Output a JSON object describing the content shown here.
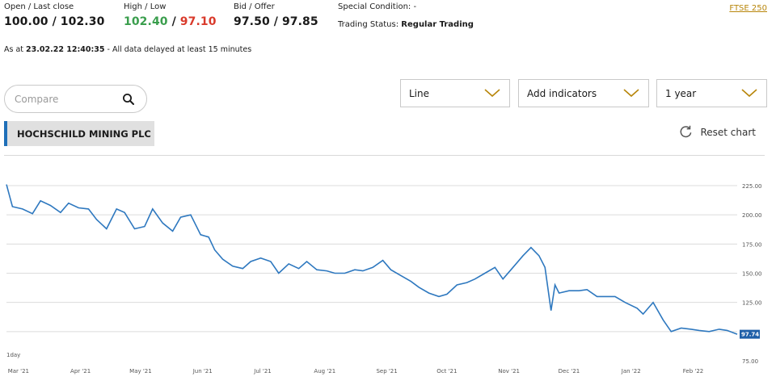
{
  "quote": {
    "open_last_close_label": "Open / Last close",
    "open_last_close_value": "100.00 / 102.30",
    "high_low_label": "High / Low",
    "high_value": "102.40",
    "separator": " / ",
    "low_value": "97.10",
    "bid_offer_label": "Bid / Offer",
    "bid_offer_value": "97.50 / 97.85",
    "special_condition_label": "Special Condition:",
    "special_condition_value": "-",
    "trading_status_label": "Trading Status:",
    "trading_status_value": "Regular Trading",
    "index_link": "FTSE 250"
  },
  "as_at": {
    "prefix": "As at ",
    "timestamp": "23.02.22 12:40:35",
    "suffix": " - All data delayed at least 15 minutes"
  },
  "controls": {
    "compare_placeholder": "Compare",
    "chart_type": "Line",
    "indicators": "Add indicators",
    "period": "1 year",
    "reset_label": "Reset chart"
  },
  "company_name": "HOCHSCHILD MINING PLC",
  "colors": {
    "line": "#2e78bf",
    "high": "#3a9e4d",
    "low": "#d93a2b",
    "accent": "#1f6fb8",
    "link": "#b8860b"
  },
  "icons": {
    "search": "search-icon",
    "chevron": "chevron-down-icon",
    "reset": "reset-icon"
  },
  "chart_data": {
    "type": "line",
    "range_label": "1day",
    "last_value_label": "97.74",
    "ylim": [
      75,
      225
    ],
    "y_ticks": [
      75,
      100,
      125,
      150,
      175,
      200,
      225
    ],
    "y_tick_labels": [
      "75.00",
      "",
      "125.00",
      "150.00",
      "175.00",
      "200.00",
      "225.00"
    ],
    "x_tick_labels": [
      "Mar '21",
      "Apr '21",
      "May '21",
      "Jun '21",
      "Jul '21",
      "Aug '21",
      "Sep '21",
      "Oct '21",
      "Nov '21",
      "Dec '21",
      "Jan '22",
      "Feb '22"
    ],
    "x_tick_dates": [
      "2021-03-01",
      "2021-04-01",
      "2021-05-01",
      "2021-06-01",
      "2021-07-01",
      "2021-08-01",
      "2021-09-01",
      "2021-10-01",
      "2021-11-01",
      "2021-12-01",
      "2022-01-01",
      "2022-02-01"
    ],
    "grid": true,
    "series": [
      {
        "dates": [
          "2021-02-23",
          "2021-02-26",
          "2021-03-03",
          "2021-03-08",
          "2021-03-12",
          "2021-03-17",
          "2021-03-22",
          "2021-03-26",
          "2021-03-31",
          "2021-04-05",
          "2021-04-09",
          "2021-04-14",
          "2021-04-19",
          "2021-04-23",
          "2021-04-28",
          "2021-05-03",
          "2021-05-07",
          "2021-05-12",
          "2021-05-17",
          "2021-05-21",
          "2021-05-26",
          "2021-05-31",
          "2021-06-04",
          "2021-06-07",
          "2021-06-11",
          "2021-06-16",
          "2021-06-21",
          "2021-06-25",
          "2021-06-30",
          "2021-07-05",
          "2021-07-09",
          "2021-07-14",
          "2021-07-19",
          "2021-07-23",
          "2021-07-28",
          "2021-08-02",
          "2021-08-06",
          "2021-08-11",
          "2021-08-16",
          "2021-08-20",
          "2021-08-25",
          "2021-08-30",
          "2021-09-03",
          "2021-09-08",
          "2021-09-13",
          "2021-09-17",
          "2021-09-22",
          "2021-09-27",
          "2021-10-01",
          "2021-10-06",
          "2021-10-11",
          "2021-10-15",
          "2021-10-20",
          "2021-10-25",
          "2021-10-29",
          "2021-11-03",
          "2021-11-08",
          "2021-11-12",
          "2021-11-16",
          "2021-11-19",
          "2021-11-22",
          "2021-11-24",
          "2021-11-26",
          "2021-12-01",
          "2021-12-06",
          "2021-12-10",
          "2021-12-15",
          "2021-12-20",
          "2021-12-24",
          "2021-12-29",
          "2022-01-04",
          "2022-01-07",
          "2022-01-12",
          "2022-01-17",
          "2022-01-21",
          "2022-01-26",
          "2022-01-31",
          "2022-02-04",
          "2022-02-09",
          "2022-02-14",
          "2022-02-18",
          "2022-02-23"
        ],
        "values": [
          226,
          207,
          205,
          201,
          212,
          208,
          202,
          210,
          206,
          205,
          196,
          188,
          205,
          202,
          188,
          190,
          205,
          193,
          186,
          198,
          200,
          183,
          181,
          170,
          162,
          156,
          154,
          160,
          163,
          160,
          150,
          158,
          154,
          160,
          153,
          152,
          150,
          150,
          153,
          152,
          155,
          161,
          153,
          148,
          143,
          138,
          133,
          130,
          132,
          140,
          142,
          145,
          150,
          155,
          145,
          155,
          165,
          172,
          165,
          155,
          118,
          140,
          133,
          135,
          135,
          136,
          130,
          130,
          130,
          125,
          120,
          115,
          125,
          110,
          100,
          103,
          102,
          101,
          100,
          102,
          101,
          97.74
        ]
      }
    ]
  }
}
